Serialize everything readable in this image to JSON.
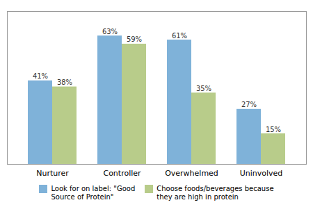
{
  "chart_data": {
    "type": "bar",
    "categories": [
      "Nurturer",
      "Controller",
      "Overwhelmed",
      "Uninvolved"
    ],
    "series": [
      {
        "name": "Look for on label: \"Good\nSource of Protein\"",
        "color": "#7fb2d9",
        "values": [
          41,
          63,
          61,
          27
        ],
        "value_labels": [
          "41%",
          "63%",
          "61%",
          "27%"
        ]
      },
      {
        "name": "Choose foods/beverages because\nthey are high in protein",
        "color": "#b8cc8a",
        "values": [
          38,
          59,
          35,
          15
        ],
        "value_labels": [
          "38%",
          "59%",
          "35%",
          "15%"
        ]
      }
    ],
    "ylim": [
      0,
      75
    ],
    "grid": false,
    "legend": "bottom",
    "data_labels": true,
    "tick_labels": "x"
  }
}
